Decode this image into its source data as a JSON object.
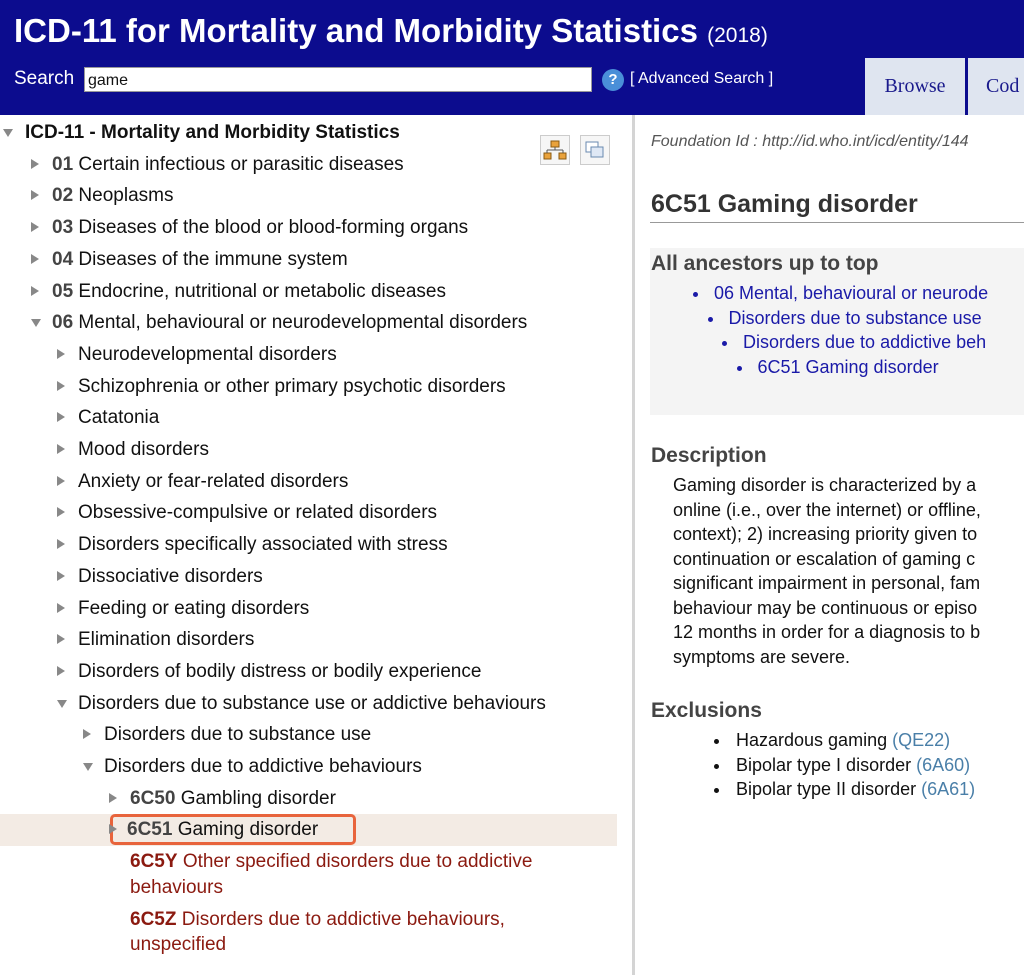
{
  "header": {
    "title": "ICD-11 for Mortality and Morbidity Statistics",
    "year": "(2018)",
    "search_label": "Search",
    "search_value": "game",
    "help": "?",
    "advanced_search": "[ Advanced Search ]",
    "tabs": [
      "Browse",
      "Cod"
    ]
  },
  "tree": {
    "root": "ICD-11 - Mortality and Morbidity Statistics",
    "items": [
      {
        "code": "01",
        "label": "Certain infectious or parasitic diseases"
      },
      {
        "code": "02",
        "label": "Neoplasms"
      },
      {
        "code": "03",
        "label": "Diseases of the blood or blood-forming organs"
      },
      {
        "code": "04",
        "label": "Diseases of the immune system"
      },
      {
        "code": "05",
        "label": "Endocrine, nutritional or metabolic diseases"
      },
      {
        "code": "06",
        "label": "Mental, behavioural or neurodevelopmental disorders",
        "children": [
          {
            "label": "Neurodevelopmental disorders"
          },
          {
            "label": "Schizophrenia or other primary psychotic disorders"
          },
          {
            "label": "Catatonia"
          },
          {
            "label": "Mood disorders"
          },
          {
            "label": "Anxiety or fear-related disorders"
          },
          {
            "label": "Obsessive-compulsive or related disorders"
          },
          {
            "label": "Disorders specifically associated with stress"
          },
          {
            "label": "Dissociative disorders"
          },
          {
            "label": "Feeding or eating disorders"
          },
          {
            "label": "Elimination disorders"
          },
          {
            "label": "Disorders of bodily distress or bodily experience"
          },
          {
            "label": "Disorders due to substance use or addictive behaviours",
            "children": [
              {
                "label": "Disorders due to substance use"
              },
              {
                "label": "Disorders due to addictive behaviours",
                "children": [
                  {
                    "code": "6C50",
                    "label": "Gambling disorder"
                  },
                  {
                    "code": "6C51",
                    "label": "Gaming disorder",
                    "selected": true
                  },
                  {
                    "code": "6C5Y",
                    "label": "Other specified disorders due to addictive behaviours",
                    "residual": true
                  },
                  {
                    "code": "6C5Z",
                    "label": "Disorders due to addictive behaviours, unspecified",
                    "residual": true
                  }
                ]
              }
            ]
          }
        ]
      }
    ]
  },
  "detail": {
    "foundation_id": "Foundation Id : http://id.who.int/icd/entity/144",
    "title": "6C51 Gaming disorder",
    "ancestors_heading": "All ancestors up to top",
    "ancestors": [
      "06 Mental, behavioural or neurode",
      "Disorders due to substance use",
      "Disorders due to addictive beh",
      "6C51 Gaming disorder"
    ],
    "description_heading": "Description",
    "description_lines": [
      "Gaming disorder is characterized by a",
      "online (i.e., over the internet) or offline,",
      "context); 2) increasing priority given to",
      "continuation or escalation of gaming c",
      "significant impairment in personal, fam",
      "behaviour may be continuous or episo",
      "12 months in order for a diagnosis to b",
      "symptoms are severe."
    ],
    "exclusions_heading": "Exclusions",
    "exclusions": [
      {
        "label": "Hazardous gaming",
        "code": "(QE22)"
      },
      {
        "label": "Bipolar type I disorder",
        "code": "(6A60)"
      },
      {
        "label": "Bipolar type II disorder",
        "code": "(6A61)"
      }
    ]
  }
}
